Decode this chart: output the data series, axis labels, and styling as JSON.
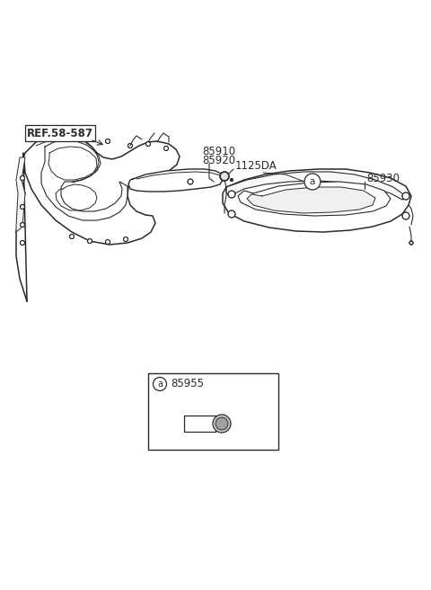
{
  "bg_color": "#ffffff",
  "line_color": "#2a2a2a",
  "labels": {
    "ref": "REF.58-587",
    "p85910": "85910",
    "p85920": "85920",
    "p1125DA": "1125DA",
    "p85930": "85930",
    "p85955": "85955",
    "circle_a": "a"
  }
}
